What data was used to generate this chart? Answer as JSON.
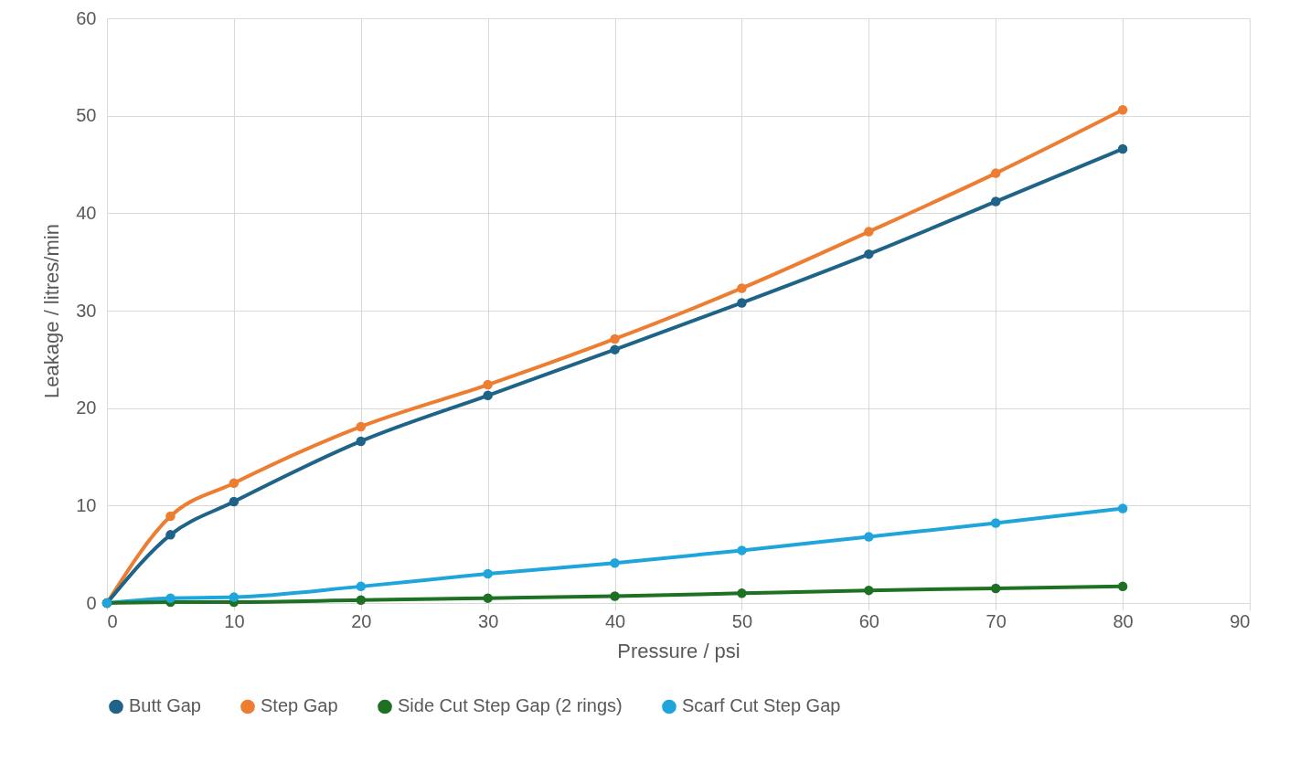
{
  "chart_data": {
    "type": "line",
    "xlabel": "Pressure / psi",
    "ylabel": "Leakage / litres/min",
    "x": [
      0,
      5,
      10,
      20,
      30,
      40,
      50,
      60,
      70,
      80
    ],
    "series": [
      {
        "name": "Butt Gap",
        "color": "#1f6388",
        "values": [
          0,
          7.0,
          10.4,
          16.6,
          21.3,
          26.0,
          30.8,
          35.8,
          41.2,
          46.6
        ]
      },
      {
        "name": "Step Gap",
        "color": "#ed7d31",
        "values": [
          0,
          8.9,
          12.3,
          18.1,
          22.4,
          27.1,
          32.3,
          38.1,
          44.1,
          50.6
        ]
      },
      {
        "name": "Side Cut Step Gap (2 rings)",
        "color": "#1e7023",
        "values": [
          0,
          0.1,
          0.1,
          0.3,
          0.5,
          0.7,
          1.0,
          1.3,
          1.5,
          1.7
        ]
      },
      {
        "name": "Scarf Cut Step Gap",
        "color": "#1fa5dc",
        "values": [
          0,
          0.5,
          0.6,
          1.7,
          3.0,
          4.1,
          5.4,
          6.8,
          8.2,
          9.7
        ]
      }
    ],
    "xlim": [
      0,
      90
    ],
    "xticks": [
      0,
      10,
      20,
      30,
      40,
      50,
      60,
      70,
      80,
      90
    ],
    "ylim": [
      0,
      60
    ],
    "yticks": [
      0,
      10,
      20,
      30,
      40,
      50,
      60
    ],
    "grid": true,
    "legend": "bottom",
    "marker": "circle",
    "line_style": "solid"
  }
}
